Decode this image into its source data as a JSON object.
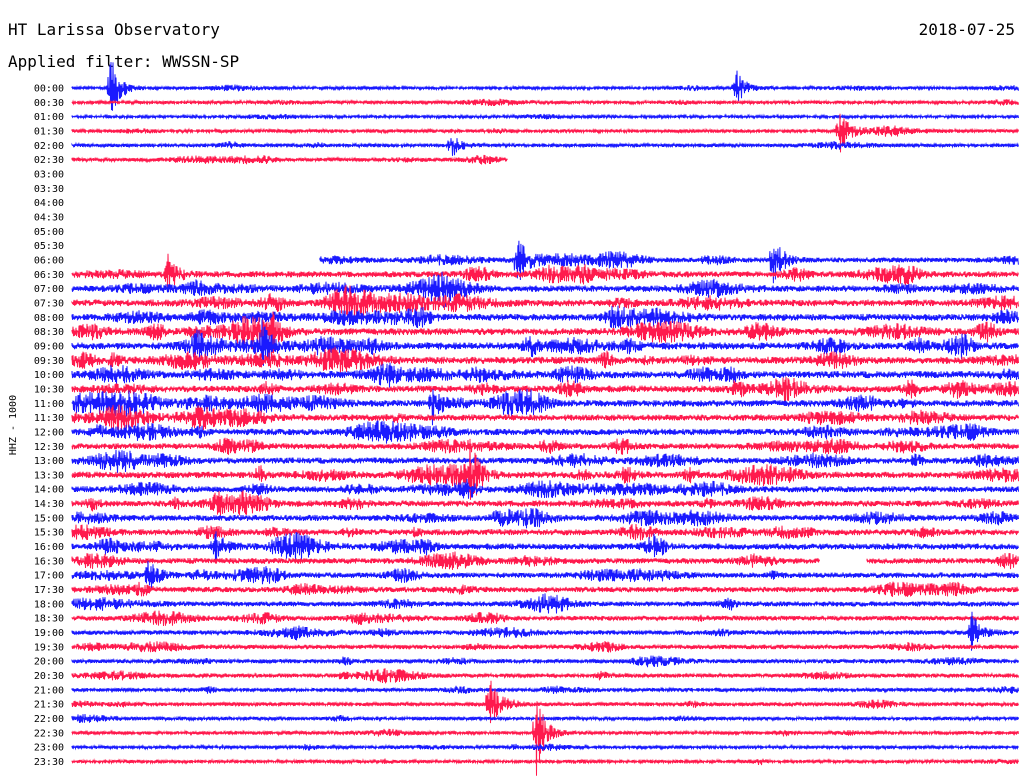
{
  "header": {
    "station": "HT Larissa Observatory",
    "date": "2018-07-25",
    "filter_text": "Applied filter: WWSSN-SP"
  },
  "colors": {
    "even_row": "#1a1aff",
    "odd_row": "#ff1a4d"
  },
  "chart_data": {
    "type": "line",
    "title": "HT Larissa Observatory",
    "ylabel": "HHZ - 1000",
    "row_interval_minutes": 30,
    "grid": false,
    "tick_labels": [
      "00:00",
      "00:30",
      "01:00",
      "01:30",
      "02:00",
      "02:30",
      "03:00",
      "03:30",
      "04:00",
      "04:30",
      "05:00",
      "05:30",
      "06:00",
      "06:30",
      "07:00",
      "07:30",
      "08:00",
      "08:30",
      "09:00",
      "09:30",
      "10:00",
      "10:30",
      "11:00",
      "11:30",
      "12:00",
      "12:30",
      "13:00",
      "13:30",
      "14:00",
      "14:30",
      "15:00",
      "15:30",
      "16:00",
      "16:30",
      "17:00",
      "17:30",
      "18:00",
      "18:30",
      "19:00",
      "19:30",
      "20:00",
      "20:30",
      "21:00",
      "21:30",
      "22:00",
      "22:30",
      "23:00",
      "23:30"
    ],
    "activity": [
      0.25,
      0.25,
      0.2,
      0.3,
      0.3,
      0.35,
      0,
      0,
      0,
      0,
      0,
      0,
      0.55,
      0.7,
      0.75,
      0.8,
      0.8,
      0.85,
      0.85,
      0.85,
      0.85,
      0.8,
      0.8,
      0.75,
      0.75,
      0.7,
      0.7,
      0.75,
      0.7,
      0.7,
      0.7,
      0.7,
      0.7,
      0.65,
      0.6,
      0.6,
      0.55,
      0.5,
      0.45,
      0.45,
      0.4,
      0.4,
      0.35,
      0.35,
      0.3,
      0.3,
      0.25,
      0.25
    ],
    "data_start_fraction": [
      0,
      0,
      0,
      0,
      0,
      0,
      null,
      null,
      null,
      null,
      null,
      null,
      0.262,
      0,
      0,
      0,
      0,
      0,
      0,
      0,
      0,
      0,
      0,
      0,
      0,
      0,
      0,
      0,
      0,
      0,
      0,
      0,
      0,
      0,
      0,
      0,
      0,
      0,
      0,
      0,
      0,
      0,
      0,
      0,
      0,
      0,
      0,
      0
    ],
    "data_end_fraction": [
      1,
      1,
      1,
      1,
      1,
      0.46,
      null,
      null,
      null,
      null,
      null,
      null,
      1,
      1,
      1,
      1,
      1,
      1,
      1,
      1,
      1,
      1,
      1,
      1,
      1,
      1,
      1,
      1,
      1,
      1,
      1,
      1,
      1,
      1,
      1,
      1,
      1,
      1,
      1,
      1,
      1,
      1,
      1,
      1,
      1,
      1,
      1,
      1
    ],
    "gaps": [
      {
        "row": 33,
        "from_fraction": 0.79,
        "to_fraction": 0.84
      }
    ],
    "events": [
      {
        "row": 0,
        "at_fraction": 0.04,
        "amplitude": 2.2
      },
      {
        "row": 0,
        "at_fraction": 0.7,
        "amplitude": 1.4
      },
      {
        "row": 3,
        "at_fraction": 0.81,
        "amplitude": 1.6
      },
      {
        "row": 4,
        "at_fraction": 0.4,
        "amplitude": 0.8
      },
      {
        "row": 12,
        "at_fraction": 0.47,
        "amplitude": 1.6
      },
      {
        "row": 12,
        "at_fraction": 0.74,
        "amplitude": 2.0
      },
      {
        "row": 13,
        "at_fraction": 0.1,
        "amplitude": 1.3
      },
      {
        "row": 17,
        "at_fraction": 0.21,
        "amplitude": 1.2
      },
      {
        "row": 18,
        "at_fraction": 0.2,
        "amplitude": 1.5
      },
      {
        "row": 22,
        "at_fraction": 0.38,
        "amplitude": 1.4
      },
      {
        "row": 27,
        "at_fraction": 0.42,
        "amplitude": 1.8
      },
      {
        "row": 32,
        "at_fraction": 0.15,
        "amplitude": 1.3
      },
      {
        "row": 34,
        "at_fraction": 0.08,
        "amplitude": 1.2
      },
      {
        "row": 38,
        "at_fraction": 0.95,
        "amplitude": 1.4
      },
      {
        "row": 43,
        "at_fraction": 0.44,
        "amplitude": 1.9
      },
      {
        "row": 45,
        "at_fraction": 0.49,
        "amplitude": 1.6
      },
      {
        "row": 45,
        "at_fraction": 0.49,
        "amplitude": 1.3
      }
    ]
  }
}
